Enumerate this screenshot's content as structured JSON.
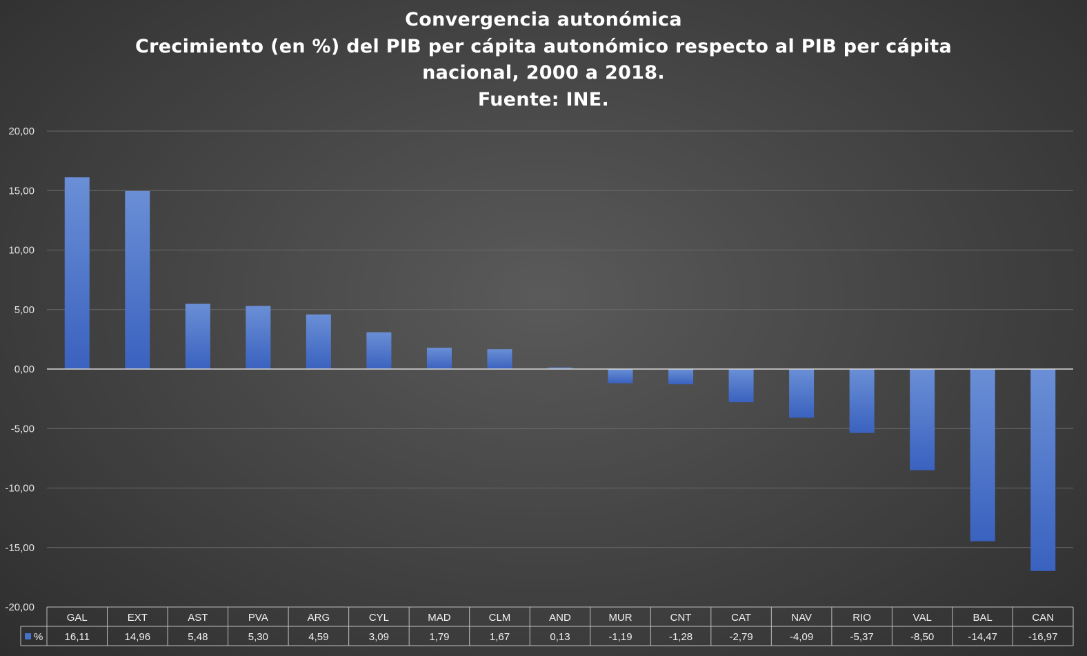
{
  "chart_data": {
    "type": "bar",
    "title_lines": [
      "Convergencia autonómica",
      "Crecimiento (en %) del PIB per cápita autonómico respecto al PIB per cápita",
      "nacional, 2000 a 2018.",
      "Fuente: INE."
    ],
    "categories": [
      "GAL",
      "EXT",
      "AST",
      "PVA",
      "ARG",
      "CYL",
      "MAD",
      "CLM",
      "AND",
      "MUR",
      "CNT",
      "CAT",
      "NAV",
      "RIO",
      "VAL",
      "BAL",
      "CAN"
    ],
    "series": [
      {
        "name": "%",
        "values": [
          16.11,
          14.96,
          5.48,
          5.3,
          4.59,
          3.09,
          1.79,
          1.67,
          0.13,
          -1.19,
          -1.28,
          -2.79,
          -4.09,
          -5.37,
          -8.5,
          -14.47,
          -16.97
        ],
        "value_labels": [
          "16,11",
          "14,96",
          "5,48",
          "5,30",
          "4,59",
          "3,09",
          "1,79",
          "1,67",
          "0,13",
          "-1,19",
          "-1,28",
          "-2,79",
          "-4,09",
          "-5,37",
          "-8,50",
          "-14,47",
          "-16,97"
        ]
      }
    ],
    "ylim": [
      -20,
      20
    ],
    "y_ticks": [
      20,
      15,
      10,
      5,
      0,
      -5,
      -10,
      -15,
      -20
    ],
    "y_tick_labels": [
      "20,00",
      "15,00",
      "10,00",
      "5,00",
      "0,00",
      "-5,00",
      "-10,00",
      "-15,00",
      "-20,00"
    ],
    "grid": true,
    "legend": "data-table",
    "colors": {
      "bar_top": "#6a8fd6",
      "bar_bottom": "#3a62bf",
      "legend_key": "#4472c4",
      "grid": "#6a6a6a",
      "zero_line": "#d9d9d9",
      "table_border": "#bfbfbf"
    }
  }
}
